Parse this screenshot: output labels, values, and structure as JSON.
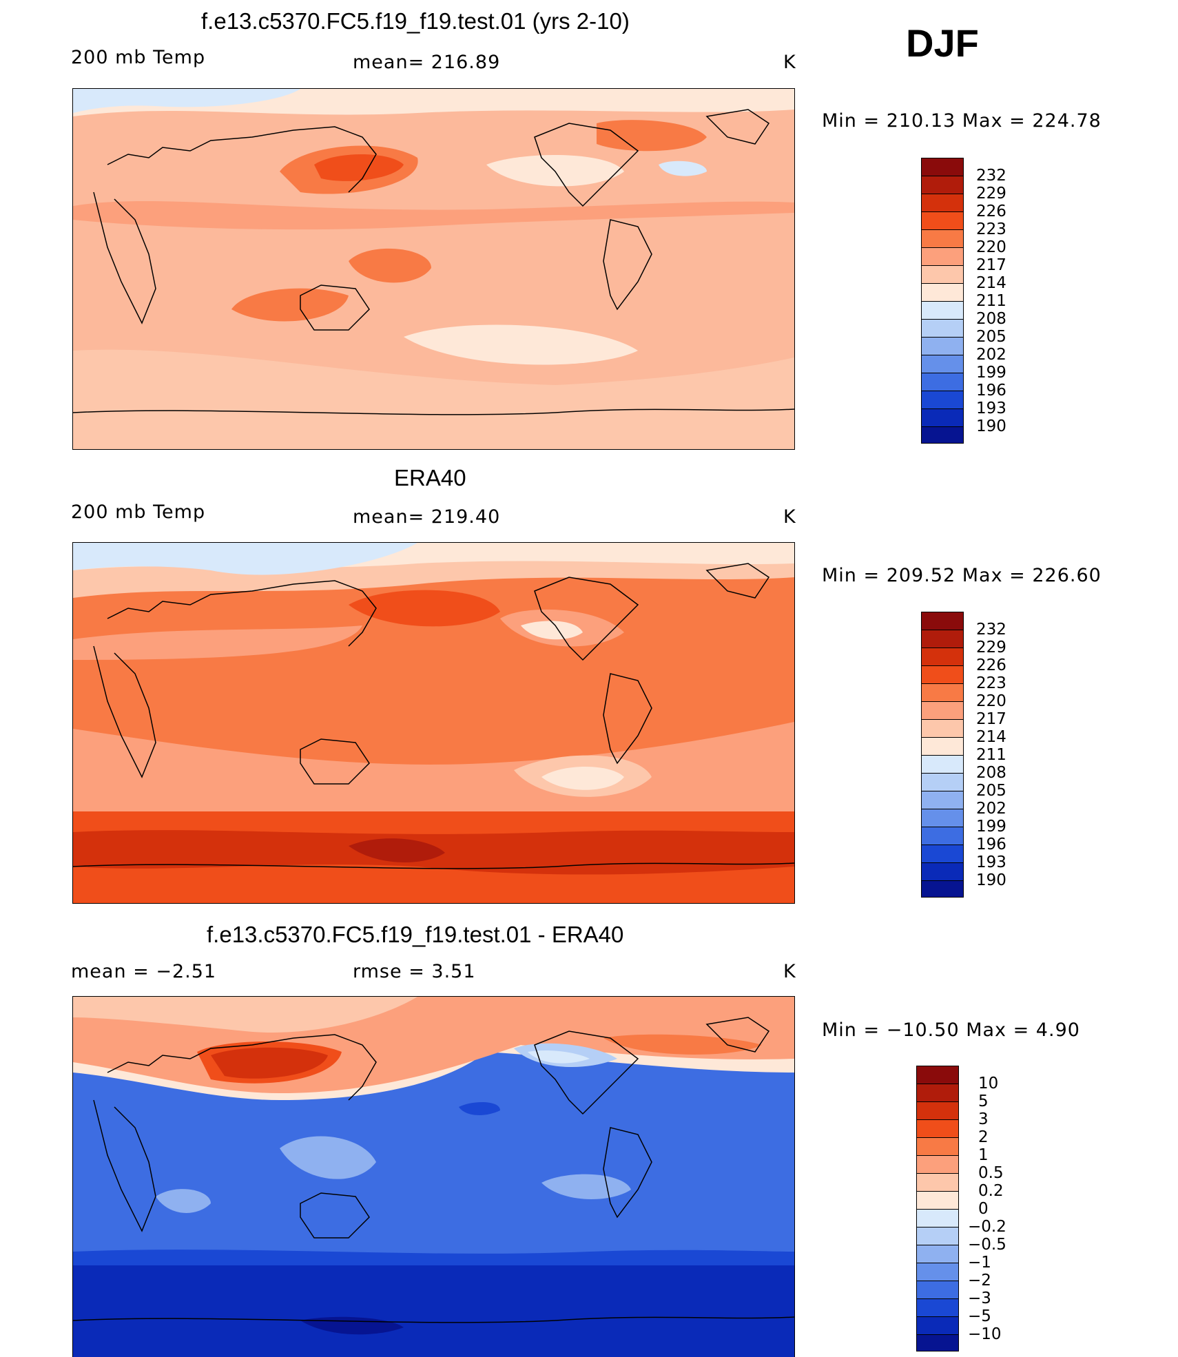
{
  "season": "DJF",
  "panels": [
    {
      "title": "f.e13.c5370.FC5.f19_f19.test.01 (yrs 2-10)",
      "left_label": "200 mb Temp",
      "center_label": "mean= 216.89",
      "units": "K",
      "minmax": "Min = 210.13 Max = 224.78",
      "colorbar": [
        "232",
        "229",
        "226",
        "223",
        "220",
        "217",
        "214",
        "211",
        "208",
        "205",
        "202",
        "199",
        "196",
        "193",
        "190"
      ]
    },
    {
      "title": "ERA40",
      "left_label": "200 mb Temp",
      "center_label": "mean= 219.40",
      "units": "K",
      "minmax": "Min = 209.52 Max = 226.60",
      "colorbar": [
        "232",
        "229",
        "226",
        "223",
        "220",
        "217",
        "214",
        "211",
        "208",
        "205",
        "202",
        "199",
        "196",
        "193",
        "190"
      ]
    },
    {
      "title": "f.e13.c5370.FC5.f19_f19.test.01 - ERA40",
      "left_label": "mean = −2.51",
      "center_label": "rmse = 3.51",
      "units": "K",
      "minmax": "Min = −10.50 Max = 4.90",
      "colorbar": [
        "10",
        "5",
        "3",
        "2",
        "1",
        "0.5",
        "0.2",
        "0",
        "−0.2",
        "−0.5",
        "−1",
        "−2",
        "−3",
        "−5",
        "−10"
      ]
    }
  ],
  "colors": {
    "scale": [
      "#8a0b0b",
      "#b01c0b",
      "#d4310c",
      "#f04e1a",
      "#f87a45",
      "#fca07c",
      "#fdc7ab",
      "#fee8d8",
      "#d8e9fb",
      "#b5cff6",
      "#8fb1f0",
      "#6590ea",
      "#3d6de2",
      "#1a48d4",
      "#0a2ab8",
      "#061491"
    ]
  }
}
